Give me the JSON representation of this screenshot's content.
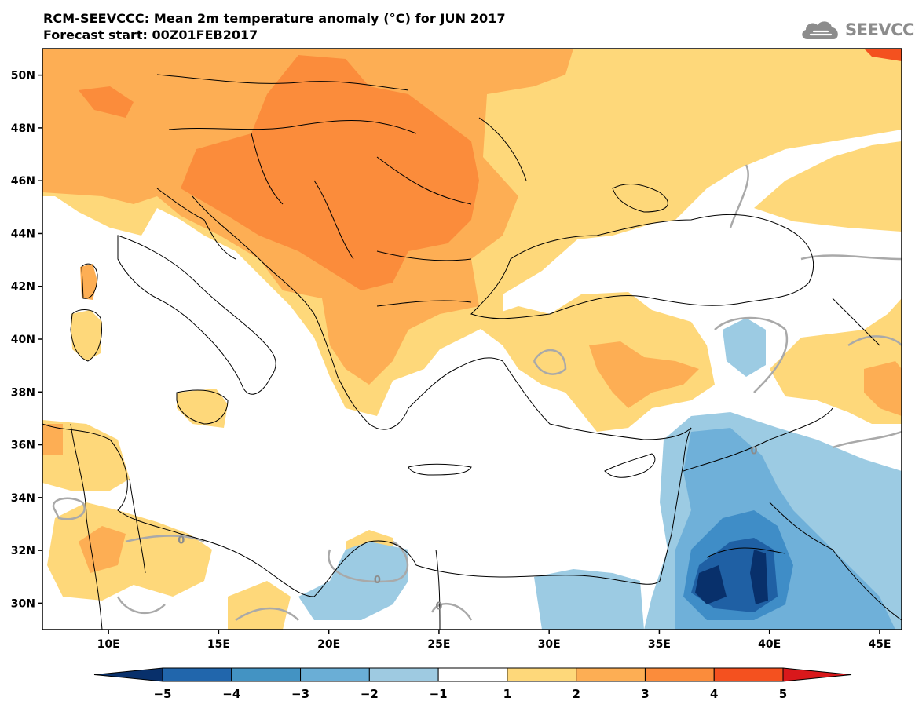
{
  "title": "RCM-SEEVCCC: Mean 2m temperature anomaly (°C) for JUN 2017",
  "subtitle": "Forecast start: 00Z01FEB2017",
  "logo": {
    "text": "SEEVCCC",
    "icon": "cloud-icon"
  },
  "map": {
    "lon_range": [
      7,
      46
    ],
    "lat_range": [
      29,
      51
    ],
    "lat_ticks": [
      {
        "value": 30,
        "label": "30N"
      },
      {
        "value": 32,
        "label": "32N"
      },
      {
        "value": 34,
        "label": "34N"
      },
      {
        "value": 36,
        "label": "36N"
      },
      {
        "value": 38,
        "label": "38N"
      },
      {
        "value": 40,
        "label": "40N"
      },
      {
        "value": 42,
        "label": "42N"
      },
      {
        "value": 44,
        "label": "44N"
      },
      {
        "value": 46,
        "label": "46N"
      },
      {
        "value": 48,
        "label": "48N"
      },
      {
        "value": 50,
        "label": "50N"
      }
    ],
    "lon_ticks": [
      {
        "value": 10,
        "label": "10E"
      },
      {
        "value": 15,
        "label": "15E"
      },
      {
        "value": 20,
        "label": "20E"
      },
      {
        "value": 25,
        "label": "25E"
      },
      {
        "value": 30,
        "label": "30E"
      },
      {
        "value": 35,
        "label": "35E"
      },
      {
        "value": 40,
        "label": "40E"
      },
      {
        "value": 45,
        "label": "45E"
      }
    ],
    "contour_labels": [
      {
        "text": "0",
        "lon": 13.3,
        "lat": 32.4
      },
      {
        "text": "0",
        "lon": 22.2,
        "lat": 30.9
      },
      {
        "text": "0",
        "lon": 25.0,
        "lat": 29.9
      },
      {
        "text": "0",
        "lon": 39.3,
        "lat": 35.8
      }
    ],
    "colors": {
      "c1": "#fed87a",
      "c2": "#fdae54",
      "c3": "#fb8c3b",
      "c4": "#f4511f",
      "c5": "#d9181b",
      "b1": "#9ccbe3",
      "b2": "#6fb0d9",
      "b3": "#3f8dc7",
      "b4": "#1f60a4",
      "b5": "#08306b",
      "zero_contour": "#a9a9a9",
      "coast": "#000000"
    }
  },
  "colorbar": {
    "levels": [
      "−5",
      "−4",
      "−3",
      "−2",
      "−1",
      "1",
      "2",
      "3",
      "4",
      "5"
    ],
    "colors": [
      "#08306b",
      "#2166ac",
      "#4393c3",
      "#6aaed6",
      "#9ecae1",
      "#ffffff",
      "#fed87a",
      "#fdae54",
      "#fb8c3b",
      "#f4511f",
      "#d9181b"
    ]
  }
}
